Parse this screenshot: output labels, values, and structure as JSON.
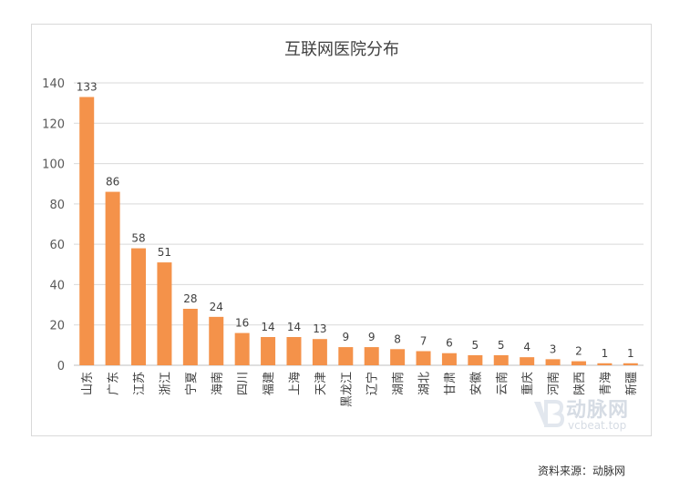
{
  "chart_data": {
    "type": "bar",
    "title": "互联网医院分布",
    "xlabel": "",
    "ylabel": "",
    "ylim": [
      0,
      140
    ],
    "yticks": [
      0,
      20,
      40,
      60,
      80,
      100,
      120,
      140
    ],
    "grid": true,
    "color": "#F4924A",
    "categories": [
      "山东",
      "广东",
      "江苏",
      "浙江",
      "宁夏",
      "海南",
      "四川",
      "福建",
      "上海",
      "天津",
      "黑龙江",
      "辽宁",
      "湖南",
      "湖北",
      "甘肃",
      "安徽",
      "云南",
      "重庆",
      "河南",
      "陕西",
      "青海",
      "新疆"
    ],
    "values": [
      133,
      86,
      58,
      51,
      28,
      24,
      16,
      14,
      14,
      13,
      9,
      9,
      8,
      7,
      6,
      5,
      5,
      4,
      3,
      2,
      1,
      1
    ]
  },
  "source": "资料来源：动脉网",
  "watermark": {
    "name": "动脉网",
    "url": "vcbeat.top",
    "icon": "vb-logo-icon"
  }
}
